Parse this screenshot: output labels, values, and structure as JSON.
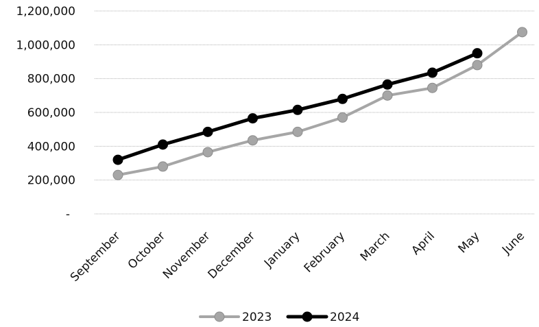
{
  "chart_data": {
    "type": "line",
    "title": "",
    "xlabel": "",
    "ylabel": "",
    "categories": [
      "September",
      "October",
      "November",
      "December",
      "January",
      "February",
      "March",
      "April",
      "May",
      "June"
    ],
    "y_ticks": [
      {
        "value": 0,
        "label": "-"
      },
      {
        "value": 200000,
        "label": "200,000"
      },
      {
        "value": 400000,
        "label": "400,000"
      },
      {
        "value": 600000,
        "label": "600,000"
      },
      {
        "value": 800000,
        "label": "800,000"
      },
      {
        "value": 1000000,
        "label": "1,000,000"
      },
      {
        "value": 1200000,
        "label": "1,200,000"
      }
    ],
    "ylim": [
      0,
      1200000
    ],
    "grid": true,
    "legend_position": "bottom",
    "series": [
      {
        "name": "2023",
        "color": "#a6a6a6",
        "values": [
          230000,
          280000,
          365000,
          435000,
          485000,
          570000,
          700000,
          745000,
          880000,
          1075000
        ]
      },
      {
        "name": "2024",
        "color": "#000000",
        "values": [
          320000,
          410000,
          485000,
          565000,
          615000,
          680000,
          765000,
          835000,
          950000,
          null
        ]
      }
    ]
  }
}
